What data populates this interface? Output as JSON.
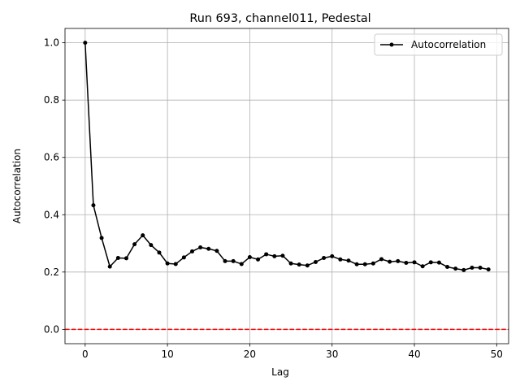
{
  "chart_data": {
    "type": "line",
    "title": "Run 693, channel011, Pedestal",
    "xlabel": "Lag",
    "ylabel": "Autocorrelation",
    "xlim": [
      -2.45,
      51.45
    ],
    "ylim": [
      -0.05,
      1.05
    ],
    "xticks": [
      0,
      10,
      20,
      30,
      40,
      50
    ],
    "yticks": [
      0.0,
      0.2,
      0.4,
      0.6,
      0.8,
      1.0
    ],
    "grid": true,
    "legend_position": "top-right",
    "series": [
      {
        "name": "Autocorrelation",
        "color": "#000000",
        "marker": "point",
        "x": [
          0,
          1,
          2,
          3,
          4,
          5,
          6,
          7,
          8,
          9,
          10,
          11,
          12,
          13,
          14,
          15,
          16,
          17,
          18,
          19,
          20,
          21,
          22,
          23,
          24,
          25,
          26,
          27,
          28,
          29,
          30,
          31,
          32,
          33,
          34,
          35,
          36,
          37,
          38,
          39,
          40,
          41,
          42,
          43,
          44,
          45,
          46,
          47,
          48,
          49
        ],
        "y": [
          1.0,
          0.433,
          0.319,
          0.219,
          0.249,
          0.248,
          0.297,
          0.328,
          0.294,
          0.268,
          0.23,
          0.228,
          0.251,
          0.272,
          0.286,
          0.281,
          0.274,
          0.238,
          0.238,
          0.228,
          0.252,
          0.244,
          0.262,
          0.255,
          0.257,
          0.23,
          0.226,
          0.223,
          0.235,
          0.249,
          0.255,
          0.244,
          0.24,
          0.227,
          0.227,
          0.23,
          0.245,
          0.236,
          0.238,
          0.232,
          0.234,
          0.22,
          0.234,
          0.233,
          0.218,
          0.212,
          0.207,
          0.215,
          0.215,
          0.209
        ]
      }
    ],
    "reference_lines": [
      {
        "axis": "y",
        "value": 0.0,
        "color": "#ff0000",
        "style": "dashed"
      }
    ]
  }
}
